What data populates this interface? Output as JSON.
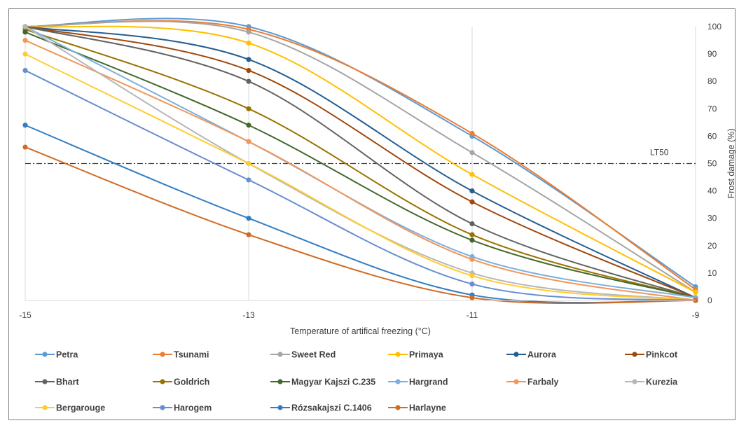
{
  "chart_data": {
    "type": "line",
    "title": "",
    "xlabel": "Temperature of artifical freezing (°C)",
    "ylabel": "Frost damage (%)",
    "x": [
      -15,
      -13,
      -11,
      -9
    ],
    "x_ticks": [
      "-15",
      "-13",
      "-11",
      "-9"
    ],
    "y_ticks": [
      "0",
      "10",
      "20",
      "30",
      "40",
      "50",
      "60",
      "70",
      "80",
      "90",
      "100"
    ],
    "xlim": [
      -15,
      -9
    ],
    "ylim": [
      0,
      100
    ],
    "y_axis_side": "right",
    "grid": "vertical",
    "smoothed": true,
    "legend_position": "bottom",
    "reference_line": {
      "label": "LT50",
      "value": 50
    },
    "series": [
      {
        "name": "Petra",
        "color": "#5b9bd5",
        "values": [
          100,
          100,
          60,
          5
        ]
      },
      {
        "name": "Tsunami",
        "color": "#ed7d31",
        "values": [
          100,
          99,
          61,
          4
        ]
      },
      {
        "name": "Sweet Red",
        "color": "#a5a5a5",
        "values": [
          100,
          98,
          54,
          3
        ]
      },
      {
        "name": "Primaya",
        "color": "#ffc000",
        "values": [
          100,
          94,
          46,
          3
        ]
      },
      {
        "name": "Aurora",
        "color": "#255e91",
        "values": [
          100,
          88,
          40,
          1
        ]
      },
      {
        "name": "Pinkcot",
        "color": "#9e480e",
        "values": [
          100,
          84,
          36,
          1
        ]
      },
      {
        "name": "Bhart",
        "color": "#636363",
        "values": [
          100,
          80,
          28,
          1
        ]
      },
      {
        "name": "Goldrich",
        "color": "#997300",
        "values": [
          99,
          70,
          24,
          1
        ]
      },
      {
        "name": "Magyar Kajszi C.235",
        "color": "#43682b",
        "values": [
          98,
          64,
          22,
          1
        ]
      },
      {
        "name": "Hargrand",
        "color": "#7cafdd",
        "values": [
          100,
          58,
          16,
          1
        ]
      },
      {
        "name": "Farbaly",
        "color": "#f1975a",
        "values": [
          95,
          58,
          15,
          0
        ]
      },
      {
        "name": "Kurezia",
        "color": "#b7b7b7",
        "values": [
          100,
          50,
          10,
          0
        ]
      },
      {
        "name": "Bergarouge",
        "color": "#ffcd33",
        "values": [
          90,
          50,
          9,
          0
        ]
      },
      {
        "name": "Harogem",
        "color": "#698ed0",
        "values": [
          84,
          44,
          6,
          0
        ]
      },
      {
        "name": "Rózsakajszi C.1406",
        "color": "#327dc2",
        "values": [
          64,
          30,
          2,
          0
        ]
      },
      {
        "name": "Harlayne",
        "color": "#d26b24",
        "values": [
          56,
          24,
          1,
          0
        ]
      }
    ]
  }
}
